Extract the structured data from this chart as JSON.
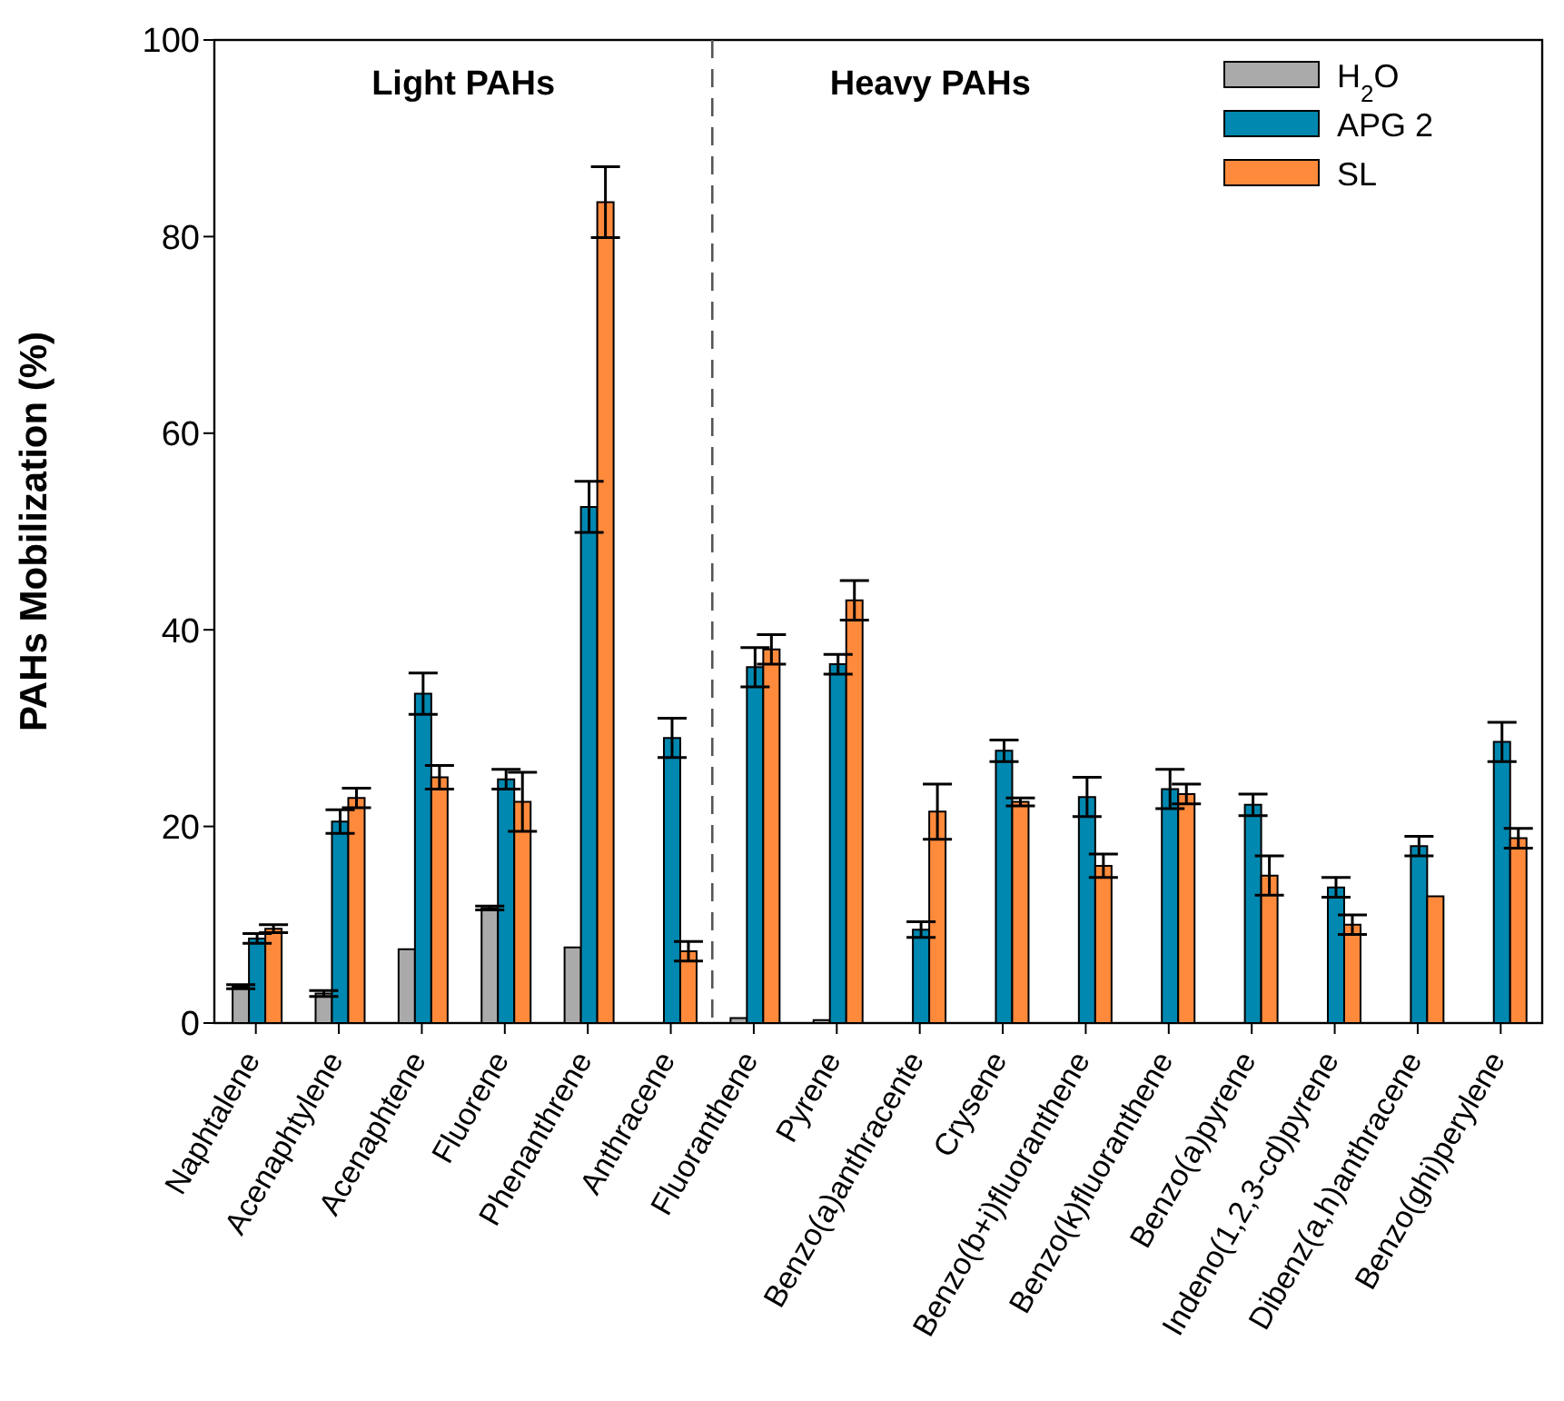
{
  "chart_data": {
    "type": "bar",
    "ylabel": "PAHs Mobilization (%)",
    "categories": [
      "Naphtalene",
      "Acenaphtylene",
      "Acenaphtene",
      "Fluorene",
      "Phenanthrene",
      "Anthracene",
      "Fluoranthene",
      "Pyrene",
      "Benzo(a)anthracente",
      "Crysene",
      "Benzo(b+i)fluoranthene",
      "Benzo(k)fluoranthene",
      "Benzo(a)pyrene",
      "Indeno(1,2,3-cd)pyrene",
      "Dibenz(a,h)anthracene",
      "Benzo(ghi)perylene"
    ],
    "series": [
      {
        "name": "H$_{2}$O",
        "color": "#aaaaaa",
        "values": [
          3.7,
          3.0,
          7.5,
          11.7,
          7.7,
          null,
          0.5,
          0.3,
          null,
          null,
          null,
          null,
          null,
          null,
          null,
          null
        ],
        "errors": [
          0.2,
          0.3,
          null,
          0.2,
          null,
          null,
          null,
          null,
          null,
          null,
          null,
          null,
          null,
          null,
          null,
          null
        ]
      },
      {
        "name": "APG 2",
        "color": "#0088b0",
        "values": [
          8.6,
          20.5,
          33.5,
          24.8,
          52.5,
          29,
          36.2,
          36.5,
          9.5,
          27.7,
          23,
          23.8,
          22.2,
          13.8,
          18,
          28.6
        ],
        "errors": [
          0.5,
          1.2,
          2.1,
          1,
          2.6,
          2,
          2,
          1,
          0.8,
          1.1,
          2,
          2,
          1.1,
          1,
          1,
          2
        ]
      },
      {
        "name": "SL",
        "color": "#ff8a3c",
        "values": [
          9.6,
          22.9,
          25,
          22.5,
          83.5,
          7.3,
          38,
          43,
          21.5,
          22.5,
          16,
          23.3,
          15,
          10,
          12.9,
          18.8
        ],
        "errors": [
          0.4,
          1,
          1.2,
          3,
          3.6,
          1,
          1.5,
          2,
          2.8,
          0.4,
          1.2,
          1,
          2,
          1,
          null,
          1
        ]
      }
    ],
    "ylim": [
      0,
      100
    ],
    "yticks": [
      0,
      20,
      40,
      60,
      80,
      100
    ],
    "legend": "top right",
    "annotations": [
      "Light PAHs",
      "Heavy PAHs"
    ]
  }
}
